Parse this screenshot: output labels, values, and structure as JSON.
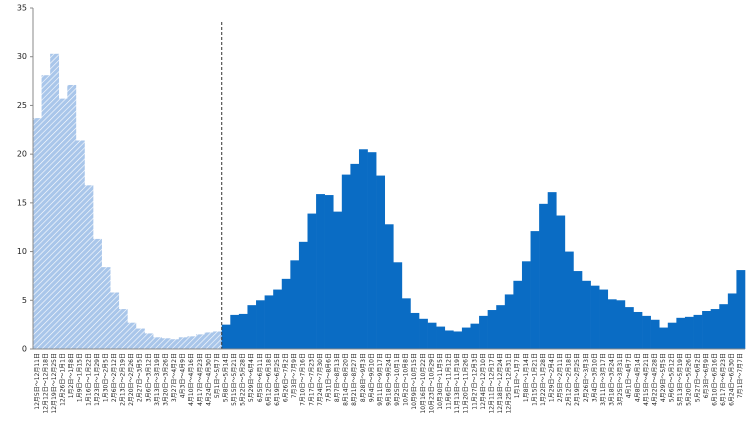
{
  "chart_data": {
    "type": "bar",
    "categories": [
      "12月5日～12月11日",
      "12月12日～12月18日",
      "12月19日～12月25日",
      "12月26日～1月1日",
      "1月2日～1月8日",
      "1月9日～1月15日",
      "1月16日～1月22日",
      "1月23日～1月29日",
      "1月30日～2月5日",
      "2月6日～2月12日",
      "2月13日～2月19日",
      "2月20日～2月26日",
      "2月27日～3月5日",
      "3月6日～3月12日",
      "3月13日～3月19日",
      "3月20日～3月26日",
      "3月27日～4月2日",
      "4月3日～4月9日",
      "4月10日～4月16日",
      "4月17日～4月23日",
      "4月24日～4月30日",
      "5月1日～5月7日",
      "5月8日～5月14日",
      "5月15日～5月21日",
      "5月22日～5月28日",
      "5月29日～6月4日",
      "6月5日～6月11日",
      "6月12日～6月18日",
      "6月19日～6月25日",
      "6月26日～7月2日",
      "7月3日～7月9日",
      "7月10日～7月16日",
      "7月17日～7月23日",
      "7月24日～7月30日",
      "7月31日～8月6日",
      "8月7日～8月13日",
      "8月14日～8月20日",
      "8月21日～8月27日",
      "8月28日～9月3日",
      "9月4日～9月10日",
      "9月11日～9月17日",
      "9月18日～9月24日",
      "9月25日～10月1日",
      "10月2日～10月8日",
      "10月9日～10月15日",
      "10月16日～10月22日",
      "10月23日～10月29日",
      "10月30日～11月5日",
      "11月6日～11月12日",
      "11月13日～11月19日",
      "11月20日～11月26日",
      "11月27日～12月3日",
      "12月4日～12月10日",
      "12月11日～12月17日",
      "12月18日～12月24日",
      "12月25日～12月31日",
      "1月1日～1月7日",
      "1月8日～1月14日",
      "1月15日～1月21日",
      "1月22日～1月28日",
      "1月29日～2月4日",
      "2月5日～2月11日",
      "2月12日～2月18日",
      "2月19日～2月25日",
      "2月26日～3月3日",
      "3月4日～3月10日",
      "3月11日～3月17日",
      "3月18日～3月24日",
      "3月25日～3月31日",
      "4月1日～4月7日",
      "4月8日～4月14日",
      "4月15日～4月21日",
      "4月22日～4月28日",
      "4月29日～5月5日",
      "5月6日～5月12日",
      "5月13日～5月19日",
      "5月20日～5月26日",
      "5月27日～6月2日",
      "6月3日～6月9日",
      "6月10日～6月16日",
      "6月17日～6月23日",
      "6月24日～6月30日",
      "7月1日～7月7日"
    ],
    "series": [
      {
        "color": "#a9c6ea",
        "hatch": true,
        "values": [
          23.7,
          28.1,
          30.3,
          25.7,
          27.1,
          21.4,
          16.8,
          11.3,
          8.4,
          5.8,
          4.1,
          2.7,
          2.1,
          1.6,
          1.2,
          1.1,
          1.0,
          1.2,
          1.3,
          1.5,
          1.7,
          1.8,
          null,
          null,
          null,
          null,
          null,
          null,
          null,
          null,
          null,
          null,
          null,
          null,
          null,
          null,
          null,
          null,
          null,
          null,
          null,
          null,
          null,
          null,
          null,
          null,
          null,
          null,
          null,
          null,
          null,
          null,
          null,
          null,
          null,
          null,
          null,
          null,
          null,
          null,
          null,
          null,
          null,
          null,
          null,
          null,
          null,
          null,
          null,
          null,
          null,
          null,
          null,
          null,
          null,
          null,
          null,
          null,
          null,
          null,
          null,
          null,
          null
        ]
      },
      {
        "color": "#0a6cc4",
        "values": [
          null,
          null,
          null,
          null,
          null,
          null,
          null,
          null,
          null,
          null,
          null,
          null,
          null,
          null,
          null,
          null,
          null,
          null,
          null,
          null,
          null,
          null,
          2.5,
          3.5,
          3.6,
          4.5,
          5.0,
          5.5,
          6.1,
          7.2,
          9.1,
          11.0,
          13.9,
          15.9,
          15.8,
          14.1,
          17.9,
          19.0,
          20.5,
          20.2,
          17.8,
          12.8,
          8.9,
          5.2,
          3.7,
          3.1,
          2.7,
          2.3,
          1.9,
          1.8,
          2.2,
          2.6,
          3.4,
          4.0,
          4.5,
          5.6,
          7.0,
          9.0,
          12.1,
          14.9,
          16.1,
          13.7,
          10.0,
          8.0,
          7.0,
          6.5,
          6.1,
          5.1,
          5.0,
          4.3,
          3.8,
          3.4,
          3.0,
          2.2,
          2.7,
          3.2,
          3.3,
          3.5,
          3.9,
          4.1,
          4.6,
          5.7,
          8.1
        ]
      }
    ],
    "ylim": [
      0,
      35
    ],
    "yticks": [
      0,
      5,
      10,
      15,
      20,
      25,
      30,
      35
    ],
    "grid": false
  }
}
